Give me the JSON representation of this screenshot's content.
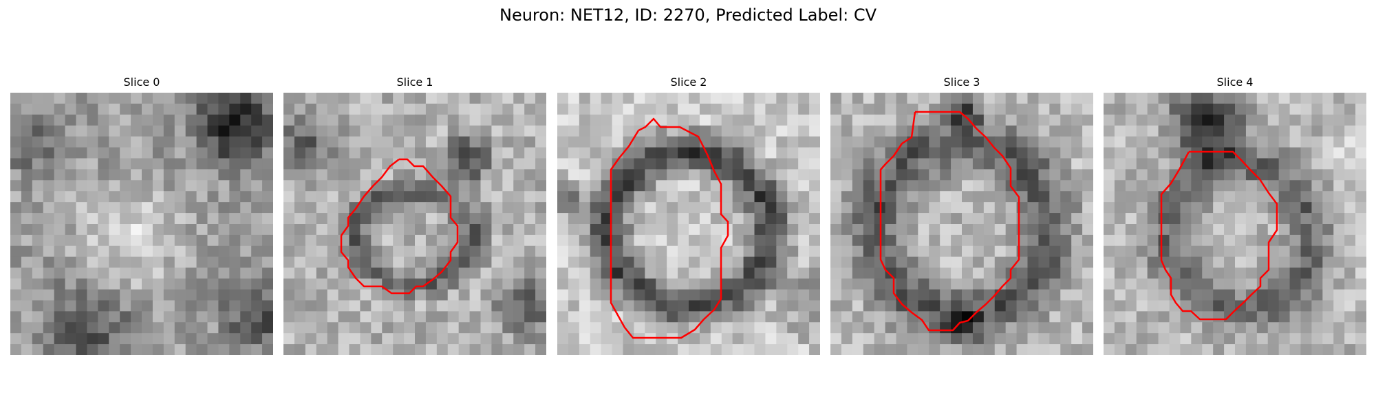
{
  "figure": {
    "title": "Neuron: NET12, ID: 2270, Predicted Label: CV"
  },
  "panels": [
    {
      "title": "Slice 0",
      "has_contour": false
    },
    {
      "title": "Slice 1",
      "has_contour": true
    },
    {
      "title": "Slice 2",
      "has_contour": true
    },
    {
      "title": "Slice 3",
      "has_contour": true
    },
    {
      "title": "Slice 4",
      "has_contour": true
    }
  ],
  "colors": {
    "contour": "#ff0000",
    "background": "#ffffff"
  }
}
